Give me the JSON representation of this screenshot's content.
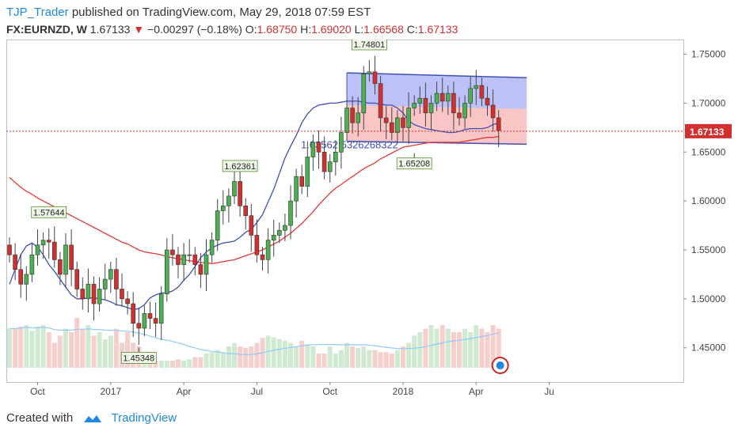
{
  "header": {
    "user": "TJP_Trader",
    "published": "published on TradingView.com, May 29, 2018 07:59 EST",
    "symbol": "FX:EURNZD, W",
    "last": "1.67133",
    "arrow": "▼",
    "change": "−0.00297 (−0.18%)",
    "o_label": "O:",
    "o_value": "1.68750",
    "h_label": "H:",
    "h_value": "1.69020",
    "l_label": "L:",
    "l_value": "1.66568",
    "c_label": "C:",
    "c_value": "1.67133"
  },
  "footer": {
    "created": "Created with",
    "brand": "TradingView"
  },
  "colors": {
    "up": "#4caf50",
    "down": "#d32f2f",
    "ma_fast": "#3f51b5",
    "ma_slow": "#e53935",
    "ma_volume": "#90caf9",
    "channel_blue": "#3f51b5",
    "last_price": "#d32f2f"
  },
  "chart_data": {
    "type": "candlestick",
    "timeframe": "W",
    "y_ticks": [
      1.45,
      1.5,
      1.55,
      1.6,
      1.65,
      1.7,
      1.75
    ],
    "y_tick_labels": [
      "1.45000",
      "1.50000",
      "1.55000",
      "1.60000",
      "1.65000",
      "1.70000",
      "1.75000"
    ],
    "ylim": [
      1.415,
      1.765
    ],
    "x_ticks": [
      {
        "i": 5,
        "label": "Oct"
      },
      {
        "i": 18,
        "label": "2017"
      },
      {
        "i": 31,
        "label": "Apr"
      },
      {
        "i": 44,
        "label": "Jul"
      },
      {
        "i": 57,
        "label": "Oct"
      },
      {
        "i": 70,
        "label": "2018"
      },
      {
        "i": 83,
        "label": "Apr"
      },
      {
        "i": 96,
        "label": "Ju"
      }
    ],
    "last_price": 1.67133,
    "last_price_label": "1.67133",
    "closes": [
      1.545,
      1.53,
      1.515,
      1.525,
      1.545,
      1.555,
      1.56,
      1.558,
      1.54,
      1.525,
      1.555,
      1.53,
      1.51,
      1.5,
      1.515,
      1.495,
      1.51,
      1.52,
      1.53,
      1.51,
      1.5,
      1.495,
      1.475,
      1.47,
      1.485,
      1.48,
      1.475,
      1.505,
      1.55,
      1.545,
      1.535,
      1.545,
      1.545,
      1.535,
      1.525,
      1.545,
      1.56,
      1.59,
      1.595,
      1.605,
      1.62,
      1.595,
      1.585,
      1.565,
      1.545,
      1.54,
      1.56,
      1.565,
      1.57,
      1.575,
      1.6,
      1.625,
      1.615,
      1.645,
      1.66,
      1.65,
      1.63,
      1.64,
      1.65,
      1.67,
      1.695,
      1.68,
      1.69,
      1.73,
      1.732,
      1.72,
      1.685,
      1.68,
      1.67,
      1.685,
      1.675,
      1.695,
      1.7,
      1.705,
      1.69,
      1.7,
      1.71,
      1.702,
      1.71,
      1.69,
      1.685,
      1.7,
      1.715,
      1.718,
      1.705,
      1.698,
      1.685,
      1.672
    ],
    "ma_fast": [
      1.515,
      1.53,
      1.545,
      1.554,
      1.557,
      1.553,
      1.545,
      1.535,
      1.528,
      1.52,
      1.512,
      1.504,
      1.5,
      1.5,
      1.501,
      1.501,
      1.5,
      1.499,
      1.497,
      1.494,
      1.493,
      1.491,
      1.489,
      1.49,
      1.494,
      1.501,
      1.504,
      1.506,
      1.506,
      1.508,
      1.512,
      1.519,
      1.525,
      1.533,
      1.542,
      1.548,
      1.552,
      1.555,
      1.557,
      1.558,
      1.559,
      1.563,
      1.568,
      1.571,
      1.578,
      1.586,
      1.599,
      1.612,
      1.628,
      1.644,
      1.656,
      1.667,
      1.68,
      1.689,
      1.695,
      1.698,
      1.699,
      1.7,
      1.7,
      1.701,
      1.702,
      1.702,
      1.702,
      1.701,
      1.7,
      1.7,
      1.699,
      1.698,
      1.698,
      1.695,
      1.69,
      1.682,
      1.678,
      1.676,
      1.674,
      1.673,
      1.672,
      1.671,
      1.67,
      1.67,
      1.671,
      1.673,
      1.674,
      1.674,
      1.674,
      1.675,
      1.678,
      1.68
    ],
    "ma_slow": [
      1.624,
      1.619,
      1.614,
      1.61,
      1.607,
      1.603,
      1.6,
      1.597,
      1.594,
      1.591,
      1.588,
      1.585,
      1.582,
      1.579,
      1.576,
      1.573,
      1.57,
      1.567,
      1.564,
      1.561,
      1.558,
      1.556,
      1.553,
      1.55,
      1.548,
      1.547,
      1.546,
      1.545,
      1.543,
      1.542,
      1.541,
      1.54,
      1.539,
      1.538,
      1.537,
      1.537,
      1.536,
      1.537,
      1.538,
      1.539,
      1.54,
      1.542,
      1.544,
      1.546,
      1.548,
      1.55,
      1.553,
      1.556,
      1.559,
      1.563,
      1.567,
      1.572,
      1.577,
      1.583,
      1.589,
      1.596,
      1.602,
      1.608,
      1.613,
      1.617,
      1.621,
      1.625,
      1.629,
      1.633,
      1.636,
      1.639,
      1.643,
      1.646,
      1.649,
      1.652,
      1.655,
      1.656,
      1.657,
      1.658,
      1.659,
      1.66,
      1.66,
      1.66,
      1.66,
      1.66,
      1.66,
      1.661,
      1.662,
      1.663,
      1.664,
      1.665,
      1.665,
      1.666
    ],
    "volumes": [
      0.55,
      0.55,
      0.58,
      0.6,
      0.52,
      0.58,
      0.6,
      0.5,
      0.35,
      0.45,
      0.55,
      0.5,
      0.7,
      0.55,
      0.6,
      0.45,
      0.5,
      0.4,
      0.45,
      0.55,
      0.35,
      0.5,
      0.35,
      0.3,
      0.15,
      0.1,
      0.1,
      0.1,
      0.1,
      0.1,
      0.12,
      0.1,
      0.12,
      0.15,
      0.15,
      0.2,
      0.22,
      0.25,
      0.22,
      0.3,
      0.35,
      0.3,
      0.28,
      0.3,
      0.35,
      0.42,
      0.45,
      0.43,
      0.4,
      0.38,
      0.35,
      0.3,
      0.38,
      0.33,
      0.3,
      0.2,
      0.2,
      0.3,
      0.2,
      0.25,
      0.35,
      0.3,
      0.28,
      0.3,
      0.25,
      0.25,
      0.22,
      0.22,
      0.2,
      0.25,
      0.3,
      0.35,
      0.45,
      0.5,
      0.55,
      0.6,
      0.55,
      0.6,
      0.55,
      0.5,
      0.5,
      0.55,
      0.5,
      0.6,
      0.55,
      0.5,
      0.6,
      0.55
    ],
    "channel": {
      "i_start": 60,
      "i_end": 92,
      "top": [
        1.731,
        1.726
      ],
      "mid": [
        1.698,
        1.694
      ],
      "bottom": [
        1.661,
        1.658
      ]
    },
    "channel_text": "1.03562 5326268322",
    "annotations": [
      {
        "i": 7,
        "price": 1.57644,
        "label": "1.57644",
        "pos": "above"
      },
      {
        "i": 23,
        "price": 1.45348,
        "label": "1.45348",
        "pos": "below"
      },
      {
        "i": 41,
        "price": 1.62361,
        "label": "1.62361",
        "pos": "above"
      },
      {
        "i": 64,
        "price": 1.74801,
        "label": "1.74801",
        "pos": "above"
      },
      {
        "i": 72,
        "price": 1.65208,
        "label": "1.65208",
        "pos": "below"
      }
    ]
  }
}
